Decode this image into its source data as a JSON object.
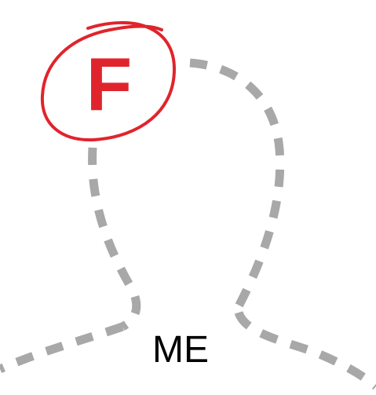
{
  "meme": {
    "grade_letter": "F",
    "caption": "ME"
  },
  "colors": {
    "background": "#ffffff",
    "grade_red": "#e0242c",
    "outline_gray": "#a8a8a8",
    "caption_text": "#000000"
  },
  "icons": {
    "person_silhouette": "dashed-person-outline-icon",
    "grade_mark": "circled-grade-icon"
  }
}
